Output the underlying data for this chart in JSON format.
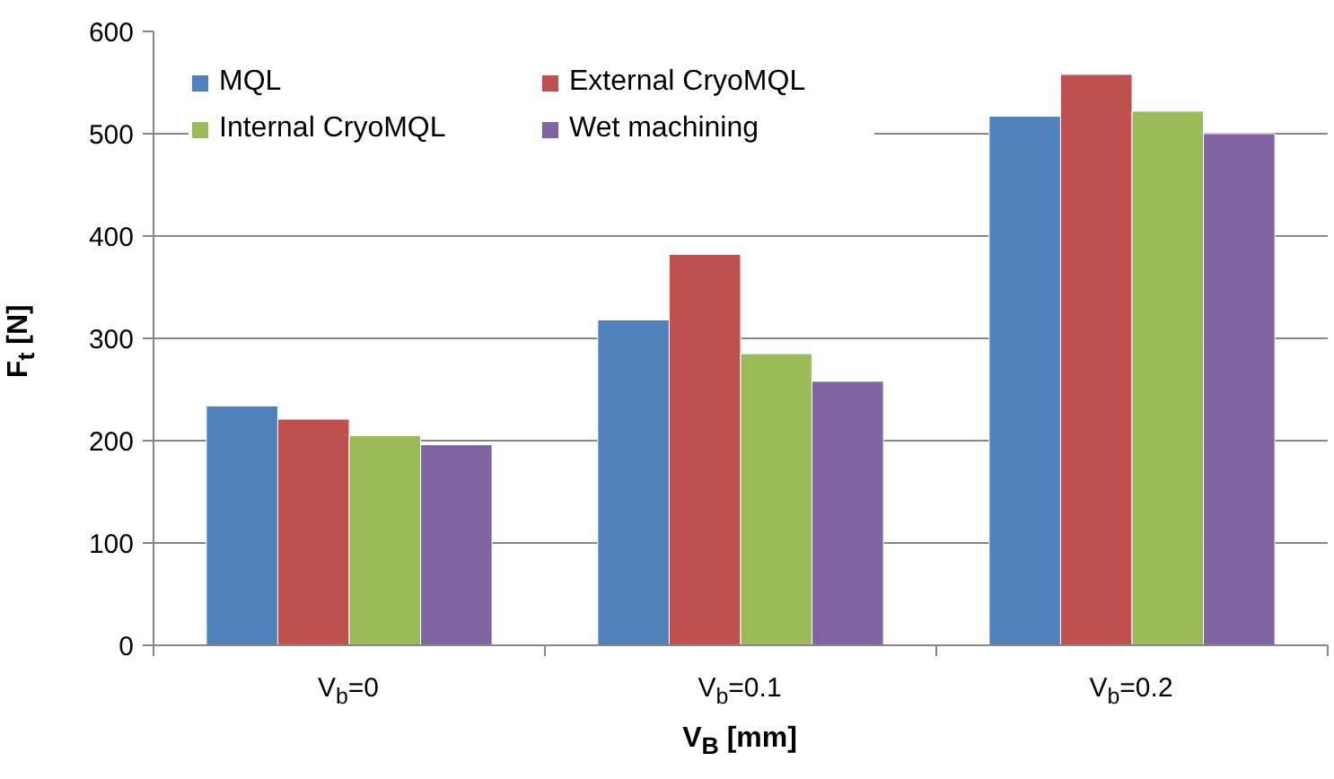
{
  "chart_data": {
    "type": "bar",
    "xlabel": "V$_{B}$ [mm]",
    "ylabel": "F$_{t}$ [N]",
    "categories": [
      "V$_{b}$=0",
      "V$_{b}$=0.1",
      "V$_{b}$=0.2"
    ],
    "series": [
      {
        "name": "MQL",
        "color": "#4f81bd",
        "values": [
          234,
          318,
          517
        ]
      },
      {
        "name": "External CryoMQL",
        "color": "#c0504d",
        "values": [
          221,
          382,
          558
        ]
      },
      {
        "name": "Internal CryoMQL",
        "color": "#9bbb59",
        "values": [
          205,
          285,
          522
        ]
      },
      {
        "name": "Wet machining",
        "color": "#8064a2",
        "values": [
          196,
          258,
          500
        ]
      }
    ],
    "ylim": [
      0,
      600
    ],
    "yticks": [
      0,
      100,
      200,
      300,
      400,
      500,
      600
    ],
    "grid": "y",
    "legend": "top left"
  }
}
